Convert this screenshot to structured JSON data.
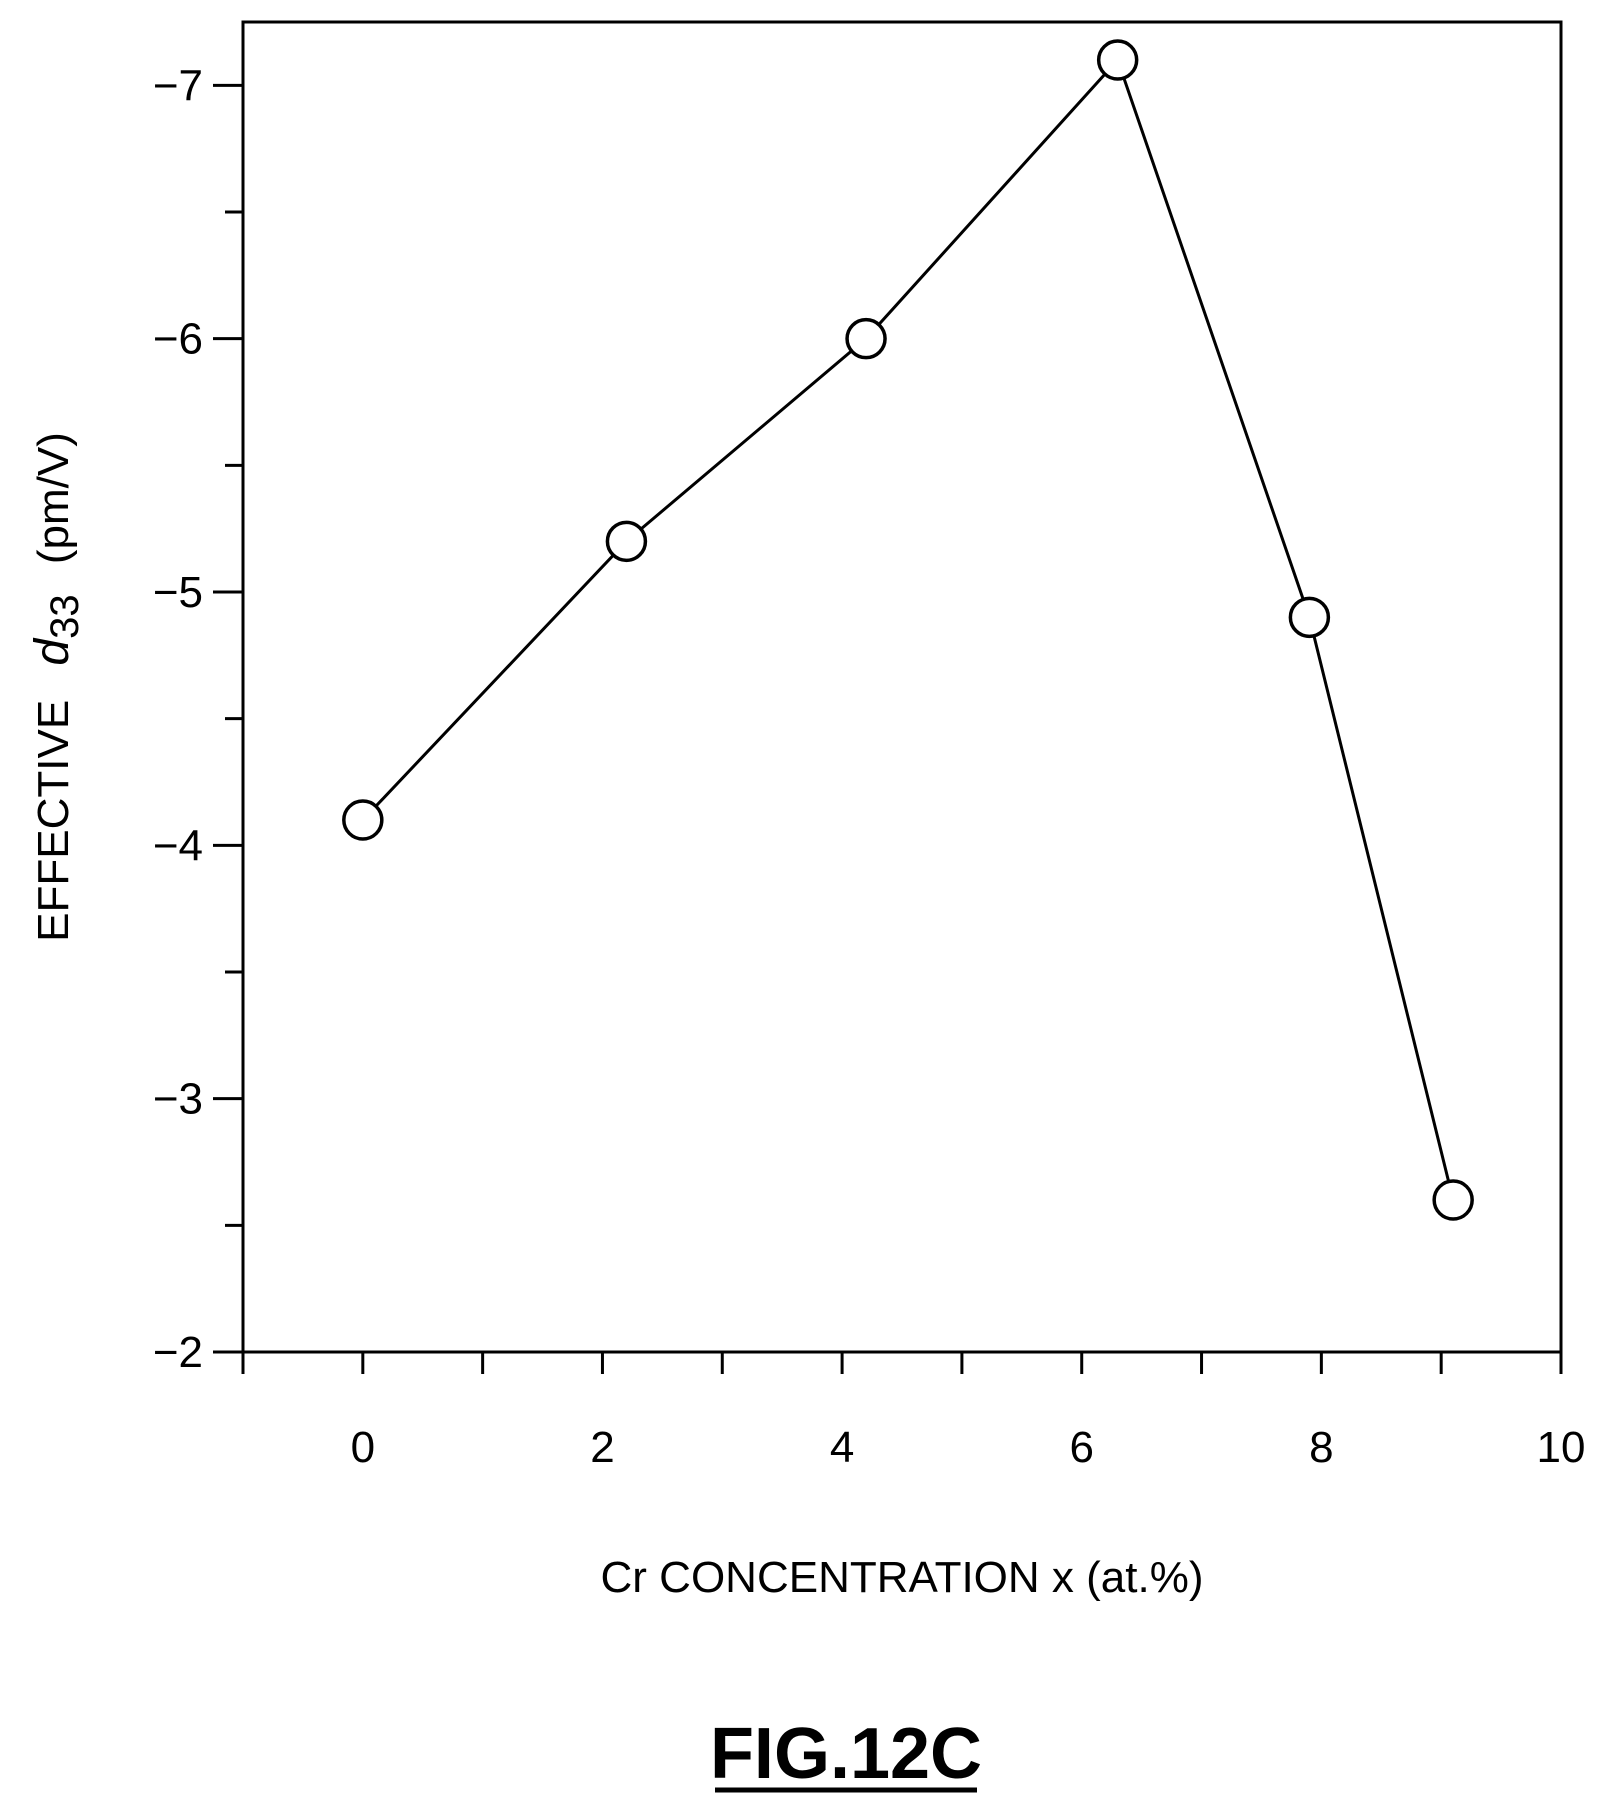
{
  "chart_data": {
    "type": "line",
    "x": [
      0,
      2.2,
      4.2,
      6.3,
      7.9,
      9.1
    ],
    "y": [
      -4.1,
      -5.2,
      -6.0,
      -7.1,
      -4.9,
      -2.6
    ],
    "xlim": [
      -1,
      10
    ],
    "ylim": [
      -2,
      -7.25
    ],
    "y_inverted": true,
    "x_ticks": [
      0,
      2,
      4,
      6,
      8,
      10
    ],
    "x_tick_labels": [
      "0",
      "2",
      "4",
      "6",
      "8",
      "10"
    ],
    "x_minor_ticks": [
      -1,
      1,
      3,
      5,
      7,
      9
    ],
    "y_ticks": [
      -2,
      -3,
      -4,
      -5,
      -6,
      -7
    ],
    "y_tick_labels": [
      "−2",
      "−3",
      "−4",
      "−5",
      "−6",
      "−7"
    ],
    "y_minor_ticks": [
      -2.5,
      -3.5,
      -4.5,
      -5.5,
      -6.5
    ],
    "xlabel": "Cr CONCENTRATION x (at.%)",
    "ylabel": {
      "prefix": "EFFECTIVE",
      "symbol": "d",
      "subscript": "33",
      "unit": "(pm/V)"
    },
    "marker": "open-circle",
    "grid": false,
    "legend": false
  },
  "caption": "FIG.12C"
}
